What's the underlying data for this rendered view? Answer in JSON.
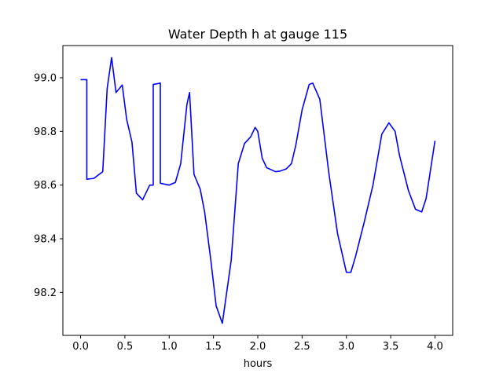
{
  "chart_data": {
    "type": "line",
    "title": "Water Depth h at gauge 115",
    "xlabel": "hours",
    "ylabel": "",
    "xlim": [
      -0.2,
      4.2
    ],
    "ylim": [
      98.04,
      99.12
    ],
    "xticks": [
      0.0,
      0.5,
      1.0,
      1.5,
      2.0,
      2.5,
      3.0,
      3.5,
      4.0
    ],
    "xtick_labels": [
      "0.0",
      "0.5",
      "1.0",
      "1.5",
      "2.0",
      "2.5",
      "3.0",
      "3.5",
      "4.0"
    ],
    "yticks": [
      98.2,
      98.4,
      98.6,
      98.8,
      99.0
    ],
    "ytick_labels": [
      "98.2",
      "98.4",
      "98.6",
      "98.8",
      "99.0"
    ],
    "grid": false,
    "legend": "none",
    "series": [
      {
        "color": "#0000ff",
        "x": [
          0.0,
          0.07,
          0.07,
          0.15,
          0.25,
          0.3,
          0.35,
          0.4,
          0.47,
          0.52,
          0.58,
          0.63,
          0.7,
          0.78,
          0.82,
          0.82,
          0.9,
          0.9,
          1.0,
          1.07,
          1.13,
          1.2,
          1.23,
          1.28,
          1.35,
          1.4,
          1.47,
          1.53,
          1.6,
          1.7,
          1.78,
          1.85,
          1.92,
          1.97,
          2.0,
          2.05,
          2.1,
          2.2,
          2.25,
          2.32,
          2.38,
          2.43,
          2.5,
          2.58,
          2.62,
          2.7,
          2.8,
          2.9,
          3.0,
          3.05,
          3.1,
          3.2,
          3.3,
          3.4,
          3.48,
          3.55,
          3.6,
          3.7,
          3.78,
          3.85,
          3.9,
          4.0
        ],
        "y": [
          98.993,
          98.993,
          98.622,
          98.625,
          98.65,
          98.96,
          99.075,
          98.945,
          98.973,
          98.845,
          98.76,
          98.57,
          98.545,
          98.6,
          98.6,
          98.975,
          98.98,
          98.607,
          98.6,
          98.61,
          98.68,
          98.9,
          98.945,
          98.64,
          98.585,
          98.5,
          98.32,
          98.15,
          98.085,
          98.32,
          98.68,
          98.755,
          98.78,
          98.815,
          98.8,
          98.7,
          98.665,
          98.65,
          98.652,
          98.66,
          98.68,
          98.75,
          98.88,
          98.975,
          98.98,
          98.92,
          98.65,
          98.42,
          98.275,
          98.275,
          98.33,
          98.46,
          98.6,
          98.79,
          98.832,
          98.8,
          98.71,
          98.58,
          98.51,
          98.5,
          98.55,
          98.765
        ]
      }
    ]
  }
}
